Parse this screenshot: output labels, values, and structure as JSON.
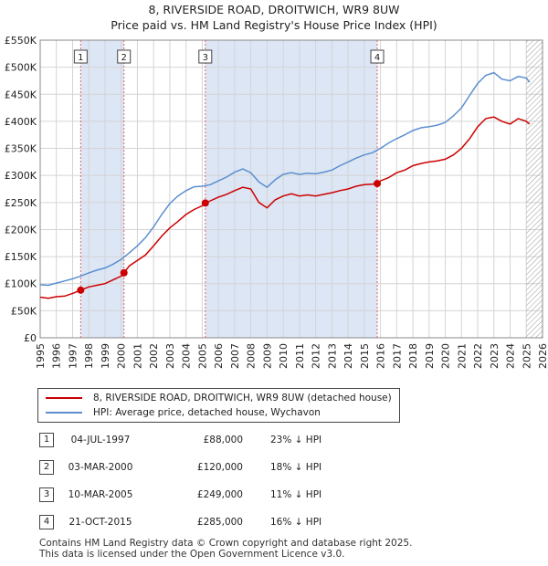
{
  "header": {
    "title": "8, RIVERSIDE ROAD, DROITWICH, WR9 8UW",
    "subtitle": "Price paid vs. HM Land Registry's House Price Index (HPI)"
  },
  "legend": {
    "property": "8, RIVERSIDE ROAD, DROITWICH, WR9 8UW (detached house)",
    "hpi": "HPI: Average price, detached house, Wychavon"
  },
  "sales": [
    {
      "num": "1",
      "date": "04-JUL-1997",
      "price": "£88,000",
      "hpi": "23% ↓ HPI"
    },
    {
      "num": "2",
      "date": "03-MAR-2000",
      "price": "£120,000",
      "hpi": "18% ↓ HPI"
    },
    {
      "num": "3",
      "date": "10-MAR-2005",
      "price": "£249,000",
      "hpi": "11% ↓ HPI"
    },
    {
      "num": "4",
      "date": "21-OCT-2015",
      "price": "£285,000",
      "hpi": "16% ↓ HPI"
    }
  ],
  "footer": {
    "line1": "Contains HM Land Registry data © Crown copyright and database right 2025.",
    "line2": "This data is licensed under the Open Government Licence v3.0."
  },
  "chart_data": {
    "type": "line",
    "title": "8, RIVERSIDE ROAD, DROITWICH, WR9 8UW",
    "subtitle": "Price paid vs. HM Land Registry's House Price Index (HPI)",
    "xlim": [
      1995,
      2026
    ],
    "ylim": [
      0,
      550000
    ],
    "x_ticks": [
      "1995",
      "1996",
      "1997",
      "1998",
      "1999",
      "2000",
      "2001",
      "2002",
      "2003",
      "2004",
      "2005",
      "2006",
      "2007",
      "2008",
      "2009",
      "2010",
      "2011",
      "2012",
      "2013",
      "2014",
      "2015",
      "2016",
      "2017",
      "2018",
      "2019",
      "2020",
      "2021",
      "2022",
      "2023",
      "2024",
      "2025",
      "2026"
    ],
    "y_ticks": [
      {
        "value": 0,
        "label": "£0"
      },
      {
        "value": 50000,
        "label": "£50K"
      },
      {
        "value": 100000,
        "label": "£100K"
      },
      {
        "value": 150000,
        "label": "£150K"
      },
      {
        "value": 200000,
        "label": "£200K"
      },
      {
        "value": 250000,
        "label": "£250K"
      },
      {
        "value": 300000,
        "label": "£300K"
      },
      {
        "value": 350000,
        "label": "£350K"
      },
      {
        "value": 400000,
        "label": "£400K"
      },
      {
        "value": 450000,
        "label": "£450K"
      },
      {
        "value": 500000,
        "label": "£500K"
      },
      {
        "value": 550000,
        "label": "£550K"
      }
    ],
    "grid": true,
    "colors": {
      "property": "#cc0000",
      "hpi": "#5b8fd0",
      "shade": "#dce6f5",
      "marker_line": "#e06060"
    },
    "shaded_periods": [
      [
        1997.5,
        2000.17
      ],
      [
        2005.19,
        2015.8
      ]
    ],
    "future_hatch_from": 2025.0,
    "sale_markers": [
      {
        "label": "1",
        "x": 1997.5,
        "y": 88000
      },
      {
        "label": "2",
        "x": 2000.17,
        "y": 120000
      },
      {
        "label": "3",
        "x": 2005.19,
        "y": 249000
      },
      {
        "label": "4",
        "x": 2015.8,
        "y": 285000
      }
    ],
    "series": [
      {
        "name": "8, RIVERSIDE ROAD, DROITWICH, WR9 8UW (detached house)",
        "x": [
          1995,
          1995.5,
          1996,
          1996.5,
          1997,
          1997.5,
          1998,
          1998.5,
          1999,
          1999.5,
          2000,
          2000.17,
          2000.5,
          2001,
          2001.5,
          2002,
          2002.5,
          2003,
          2003.5,
          2004,
          2004.5,
          2005,
          2005.19,
          2005.5,
          2006,
          2006.5,
          2007,
          2007.5,
          2008,
          2008.5,
          2009,
          2009.5,
          2010,
          2010.5,
          2011,
          2011.5,
          2012,
          2012.5,
          2013,
          2013.5,
          2014,
          2014.5,
          2015,
          2015.5,
          2015.8,
          2016,
          2016.5,
          2017,
          2017.5,
          2018,
          2018.5,
          2019,
          2019.5,
          2020,
          2020.5,
          2021,
          2021.5,
          2022,
          2022.5,
          2023,
          2023.5,
          2024,
          2024.5,
          2025,
          2025.2
        ],
        "values": [
          75000,
          73000,
          76000,
          77000,
          82000,
          88000,
          94000,
          97000,
          100000,
          107000,
          114000,
          120000,
          133000,
          143000,
          153000,
          170000,
          188000,
          203000,
          215000,
          228000,
          237000,
          244000,
          249000,
          253000,
          260000,
          265000,
          272000,
          278000,
          275000,
          250000,
          240000,
          255000,
          262000,
          266000,
          262000,
          264000,
          262000,
          265000,
          268000,
          272000,
          275000,
          280000,
          283000,
          284000,
          285000,
          290000,
          296000,
          305000,
          310000,
          318000,
          322000,
          325000,
          327000,
          330000,
          338000,
          350000,
          368000,
          390000,
          405000,
          408000,
          400000,
          395000,
          405000,
          400000,
          395000
        ]
      },
      {
        "name": "HPI: Average price, detached house, Wychavon",
        "x": [
          1995,
          1995.5,
          1996,
          1996.5,
          1997,
          1997.5,
          1998,
          1998.5,
          1999,
          1999.5,
          2000,
          2000.5,
          2001,
          2001.5,
          2002,
          2002.5,
          2003,
          2003.5,
          2004,
          2004.5,
          2005,
          2005.5,
          2006,
          2006.5,
          2007,
          2007.5,
          2008,
          2008.5,
          2009,
          2009.5,
          2010,
          2010.5,
          2011,
          2011.5,
          2012,
          2012.5,
          2013,
          2013.5,
          2014,
          2014.5,
          2015,
          2015.5,
          2016,
          2016.5,
          2017,
          2017.5,
          2018,
          2018.5,
          2019,
          2019.5,
          2020,
          2020.5,
          2021,
          2021.5,
          2022,
          2022.5,
          2023,
          2023.5,
          2024,
          2024.5,
          2025,
          2025.2
        ],
        "values": [
          98000,
          97000,
          101000,
          105000,
          109000,
          114000,
          120000,
          125000,
          129000,
          136000,
          145000,
          157000,
          170000,
          185000,
          205000,
          228000,
          248000,
          262000,
          272000,
          279000,
          280000,
          283000,
          290000,
          297000,
          306000,
          312000,
          305000,
          288000,
          278000,
          292000,
          302000,
          305000,
          302000,
          304000,
          303000,
          306000,
          310000,
          318000,
          325000,
          332000,
          338000,
          342000,
          350000,
          360000,
          368000,
          375000,
          383000,
          388000,
          390000,
          393000,
          398000,
          410000,
          425000,
          448000,
          470000,
          485000,
          490000,
          478000,
          475000,
          483000,
          480000,
          472000
        ]
      }
    ]
  }
}
